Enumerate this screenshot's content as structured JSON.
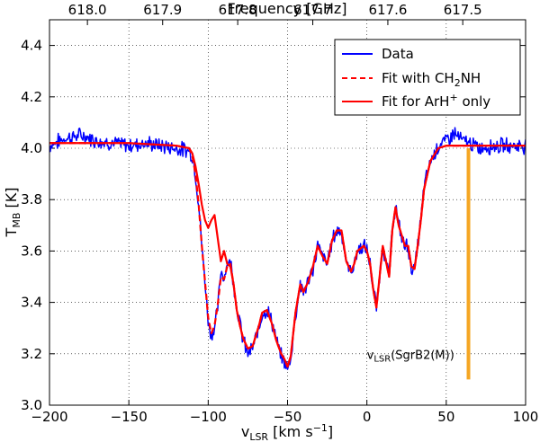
{
  "chart_data": {
    "type": "line",
    "xlabel": "v_LSR [km s^-1]",
    "xlabel_parts": {
      "main": "v",
      "sub": "LSR",
      "unit_pre": " [km s",
      "unit_sup": "−1",
      "unit_post": "]"
    },
    "ylabel": "T_MB [K]",
    "ylabel_parts": {
      "main": "T",
      "sub": "MB",
      "unit": " [K]"
    },
    "top_xlabel": "Frequency [GHz]",
    "xlim": [
      -200,
      100
    ],
    "ylim": [
      3.0,
      4.5
    ],
    "x_ticks": [
      -200,
      -150,
      -100,
      -50,
      0,
      50,
      100
    ],
    "x_tick_labels": [
      "−200",
      "−150",
      "−100",
      "−50",
      "0",
      "50",
      "100"
    ],
    "y_ticks": [
      3.0,
      3.2,
      3.4,
      3.6,
      3.8,
      4.0,
      4.2,
      4.4
    ],
    "y_tick_labels": [
      "3.0",
      "3.2",
      "3.4",
      "3.6",
      "3.8",
      "4.0",
      "4.2",
      "4.4"
    ],
    "top_ticks_velocity": [
      -176.1,
      -128.7,
      -81.4,
      -34.1,
      13.2,
      60.4
    ],
    "top_tick_labels": [
      "618.0",
      "617.9",
      "617.8",
      "617.7",
      "617.6",
      "617.5"
    ],
    "grid": true,
    "legend_position": "top-right",
    "series": [
      {
        "name": "Data",
        "color": "#0000ff",
        "style": "solid",
        "noisy": true,
        "x": [
          -200,
          -190,
          -180,
          -170,
          -160,
          -150,
          -140,
          -130,
          -120,
          -112,
          -110,
          -108,
          -106,
          -104,
          -102,
          -100,
          -98,
          -96,
          -94,
          -92,
          -90,
          -88,
          -86,
          -84,
          -82,
          -80,
          -78,
          -75,
          -72,
          -70,
          -68,
          -66,
          -63,
          -60,
          -57,
          -54,
          -52,
          -50,
          -48,
          -45,
          -42,
          -40,
          -37,
          -34,
          -31,
          -28,
          -25,
          -22,
          -19,
          -16,
          -13,
          -10,
          -8,
          -6,
          -4,
          -2,
          0,
          2,
          4,
          6,
          8,
          10,
          12,
          14,
          16,
          18,
          20,
          22,
          24,
          26,
          28,
          30,
          32,
          34,
          36,
          40,
          45,
          50,
          55,
          60,
          65,
          70,
          80,
          90,
          100
        ],
        "y": [
          4.01,
          4.04,
          4.05,
          4.03,
          4.02,
          4.01,
          4.02,
          4.01,
          4.0,
          3.99,
          3.97,
          3.9,
          3.78,
          3.62,
          3.48,
          3.33,
          3.27,
          3.3,
          3.38,
          3.52,
          3.5,
          3.55,
          3.56,
          3.48,
          3.38,
          3.32,
          3.25,
          3.2,
          3.22,
          3.26,
          3.3,
          3.36,
          3.37,
          3.33,
          3.25,
          3.19,
          3.17,
          3.14,
          3.18,
          3.35,
          3.47,
          3.44,
          3.48,
          3.53,
          3.62,
          3.58,
          3.55,
          3.64,
          3.68,
          3.68,
          3.55,
          3.52,
          3.55,
          3.6,
          3.61,
          3.62,
          3.6,
          3.55,
          3.45,
          3.38,
          3.5,
          3.62,
          3.56,
          3.5,
          3.68,
          3.78,
          3.7,
          3.65,
          3.62,
          3.62,
          3.53,
          3.53,
          3.62,
          3.72,
          3.85,
          3.95,
          4.01,
          4.03,
          4.06,
          4.03,
          4.02,
          4.0,
          4.01,
          4.01,
          4.01
        ]
      },
      {
        "name": "Fit with CH₂NH",
        "name_parts": {
          "pre": "Fit with CH",
          "sub": "2",
          "post": "NH"
        },
        "color": "#ff0000",
        "style": "dashed",
        "x": [
          -200,
          -150,
          -120,
          -112,
          -110,
          -108,
          -106,
          -104,
          -102,
          -100,
          -98,
          -96,
          -94,
          -92,
          -90,
          -88,
          -86,
          -84,
          -82,
          -80,
          -78,
          -75,
          -72,
          -70,
          -68,
          -66,
          -63,
          -60,
          -57,
          -54,
          -52,
          -50,
          -48,
          -45,
          -42,
          -40,
          -37,
          -34,
          -31,
          -28,
          -25,
          -22,
          -19,
          -16,
          -13,
          -10,
          -8,
          -6,
          -4,
          -2,
          0,
          2,
          4,
          6,
          8,
          10,
          12,
          14,
          16,
          18,
          20,
          22,
          24,
          26,
          28,
          30,
          32,
          34,
          36,
          40,
          45,
          50,
          55,
          60,
          65,
          70,
          80,
          90,
          100
        ],
        "y": [
          4.02,
          4.02,
          4.01,
          4.0,
          3.97,
          3.9,
          3.78,
          3.62,
          3.48,
          3.34,
          3.28,
          3.31,
          3.39,
          3.5,
          3.49,
          3.54,
          3.55,
          3.47,
          3.37,
          3.31,
          3.26,
          3.22,
          3.23,
          3.27,
          3.31,
          3.36,
          3.37,
          3.32,
          3.25,
          3.2,
          3.18,
          3.15,
          3.19,
          3.36,
          3.47,
          3.44,
          3.48,
          3.54,
          3.62,
          3.58,
          3.55,
          3.64,
          3.68,
          3.68,
          3.56,
          3.52,
          3.55,
          3.6,
          3.61,
          3.62,
          3.6,
          3.55,
          3.45,
          3.38,
          3.5,
          3.62,
          3.56,
          3.5,
          3.68,
          3.77,
          3.7,
          3.66,
          3.62,
          3.62,
          3.54,
          3.53,
          3.62,
          3.72,
          3.84,
          3.95,
          4.0,
          4.01,
          4.01,
          4.01,
          4.01,
          4.01,
          4.01,
          4.01,
          4.01
        ]
      },
      {
        "name": "Fit for ArH⁺ only",
        "name_parts": {
          "pre": "Fit for ArH",
          "sup": "+",
          "post": " only"
        },
        "color": "#ff0000",
        "style": "solid",
        "x": [
          -200,
          -150,
          -120,
          -112,
          -110,
          -108,
          -106,
          -104,
          -102,
          -100,
          -98,
          -96,
          -94,
          -92,
          -90,
          -88,
          -86,
          -84,
          -82,
          -80,
          -78,
          -75,
          -72,
          -70,
          -68,
          -66,
          -63,
          -60,
          -57,
          -54,
          -52,
          -50,
          -48,
          -45,
          -42,
          -40,
          -37,
          -34,
          -31,
          -28,
          -25,
          -22,
          -19,
          -16,
          -13,
          -10,
          -8,
          -6,
          -4,
          -2,
          0,
          2,
          4,
          6,
          8,
          10,
          12,
          14,
          16,
          18,
          20,
          22,
          24,
          26,
          28,
          30,
          32,
          34,
          36,
          40,
          45,
          50,
          55,
          60,
          65,
          70,
          80,
          90,
          100
        ],
        "y": [
          4.02,
          4.02,
          4.01,
          4.0,
          3.98,
          3.93,
          3.86,
          3.78,
          3.72,
          3.69,
          3.72,
          3.74,
          3.65,
          3.56,
          3.6,
          3.55,
          3.54,
          3.47,
          3.37,
          3.31,
          3.26,
          3.22,
          3.23,
          3.27,
          3.31,
          3.36,
          3.37,
          3.32,
          3.25,
          3.2,
          3.18,
          3.15,
          3.19,
          3.36,
          3.47,
          3.44,
          3.48,
          3.54,
          3.62,
          3.58,
          3.55,
          3.64,
          3.68,
          3.68,
          3.56,
          3.52,
          3.55,
          3.6,
          3.61,
          3.62,
          3.6,
          3.55,
          3.45,
          3.38,
          3.5,
          3.62,
          3.56,
          3.5,
          3.68,
          3.77,
          3.7,
          3.66,
          3.62,
          3.62,
          3.54,
          3.53,
          3.62,
          3.72,
          3.84,
          3.95,
          4.0,
          4.01,
          4.01,
          4.01,
          4.01,
          4.01,
          4.01,
          4.01,
          4.01
        ]
      }
    ],
    "annotations": [
      {
        "type": "vline",
        "x": 64,
        "y_range": [
          3.1,
          4.0
        ],
        "color": "#f5a623"
      },
      {
        "type": "text",
        "main": "v",
        "sub": "LSR",
        "post": "(SgrB2(M))",
        "x": 0,
        "y": 3.18
      }
    ]
  }
}
